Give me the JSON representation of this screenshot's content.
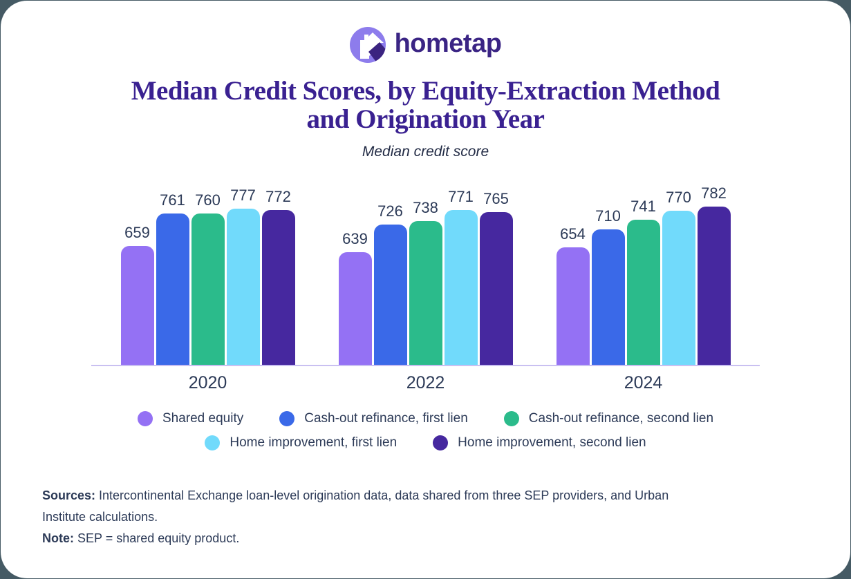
{
  "logo": {
    "brand": "hometap"
  },
  "title": "Median Credit Scores, by Equity-Extraction Method and Origination Year",
  "subtitle": "Median credit score",
  "chart_data": {
    "type": "bar",
    "categories": [
      "2020",
      "2022",
      "2024"
    ],
    "series": [
      {
        "name": "Shared equity",
        "color": "#9471F4",
        "values": [
          659,
          639,
          654
        ]
      },
      {
        "name": "Cash-out refinance, first lien",
        "color": "#3A69E8",
        "values": [
          761,
          726,
          710
        ]
      },
      {
        "name": "Cash-out refinance, second lien",
        "color": "#2BBB8B",
        "values": [
          760,
          738,
          741
        ]
      },
      {
        "name": "Home improvement, first lien",
        "color": "#71DAFB",
        "values": [
          777,
          771,
          770
        ]
      },
      {
        "name": "Home improvement, second lien",
        "color": "#46289F",
        "values": [
          772,
          765,
          782
        ]
      }
    ],
    "title": "Median Credit Scores, by Equity-Extraction Method and Origination Year",
    "ylabel": "Median credit score",
    "xlabel": "",
    "grid": false,
    "value_labels": true,
    "legend_position": "bottom"
  },
  "footer": {
    "sources_label": "Sources:",
    "sources_text": " Intercontinental Exchange loan-level origination data, data shared from three SEP providers, and Urban Institute calculations.",
    "note_label": "Note:",
    "note_text": " SEP = shared equity product."
  },
  "colors": {
    "page_background": "#455A64",
    "card_background": "#FFFFFF",
    "title_purple": "#3A2191",
    "wordmark_purple": "#3A2484",
    "logo_circle": "#8D7CEC",
    "logo_dark_shape": "#3B2380",
    "text_navy": "#2C3A57",
    "axis_line": "#C9C0F1"
  }
}
